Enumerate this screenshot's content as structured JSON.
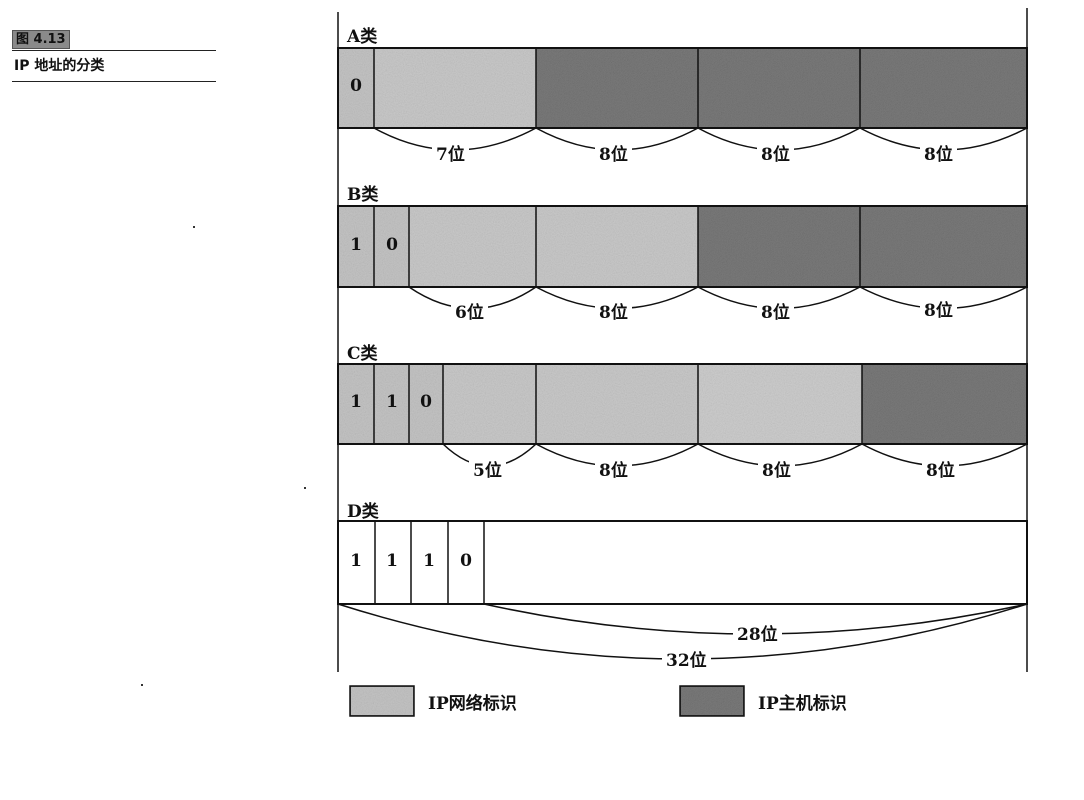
{
  "figure": {
    "number": "图 4.13",
    "title": "IP 地址的分类"
  },
  "classes": [
    {
      "label": "A类",
      "fixed_bits": [
        "0"
      ],
      "widths": [
        "7位",
        "8位",
        "8位",
        "8位"
      ]
    },
    {
      "label": "B类",
      "fixed_bits": [
        "1",
        "0"
      ],
      "widths": [
        "6位",
        "8位",
        "8位",
        "8位"
      ]
    },
    {
      "label": "C类",
      "fixed_bits": [
        "1",
        "1",
        "0"
      ],
      "widths": [
        "5位",
        "8位",
        "8位",
        "8位"
      ]
    },
    {
      "label": "D类",
      "fixed_bits": [
        "1",
        "1",
        "1",
        "0"
      ],
      "widths": [
        "28位",
        "32位"
      ]
    }
  ],
  "legend": {
    "network": "IP网络标识",
    "host": "IP主机标识"
  },
  "colors": {
    "network_fill": "#c4c4c4",
    "host_fill": "#7c7c7c",
    "border": "#111111"
  }
}
